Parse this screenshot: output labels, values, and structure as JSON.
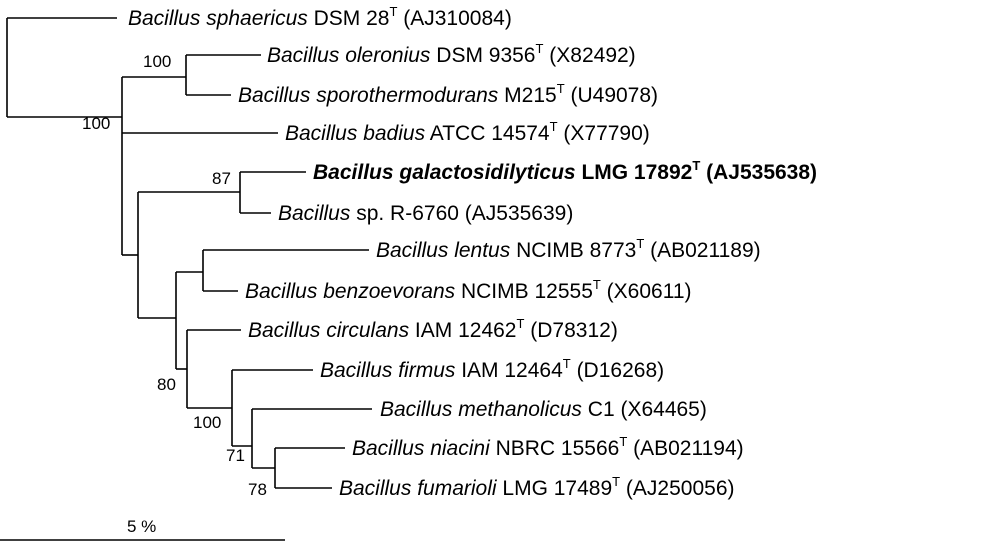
{
  "taxa": [
    {
      "id": "sphaericus",
      "genus": "Bacillus",
      "species": "sphaericus",
      "strain": "DSM 28",
      "type_strain": true,
      "accession": "(AJ310084)",
      "bold": false
    },
    {
      "id": "oleronius",
      "genus": "Bacillus",
      "species": "oleronius",
      "strain": "DSM 9356",
      "type_strain": true,
      "accession": "(X82492)",
      "bold": false
    },
    {
      "id": "sporothermodurans",
      "genus": "Bacillus",
      "species": "sporothermodurans",
      "strain": "M215",
      "type_strain": true,
      "accession": "(U49078)",
      "bold": false
    },
    {
      "id": "badius",
      "genus": "Bacillus",
      "species": "badius",
      "strain": "ATCC 14574",
      "type_strain": true,
      "accession": "(X77790)",
      "bold": false
    },
    {
      "id": "galactosidilyticus",
      "genus": "Bacillus",
      "species": "galactosidilyticus",
      "strain": "LMG 17892",
      "type_strain": true,
      "accession": "(AJ535638)",
      "bold": true
    },
    {
      "id": "r6760",
      "genus": "Bacillus",
      "species": "sp.",
      "species_italic": false,
      "strain": "R-6760",
      "type_strain": false,
      "accession": "(AJ535639)",
      "bold": false
    },
    {
      "id": "lentus",
      "genus": "Bacillus",
      "species": "lentus",
      "strain": "NCIMB 8773",
      "type_strain": true,
      "accession": "(AB021189)",
      "bold": false
    },
    {
      "id": "benzoevorans",
      "genus": "Bacillus",
      "species": "benzoevorans",
      "strain": "NCIMB 12555",
      "type_strain": true,
      "accession": "(X60611)",
      "bold": false
    },
    {
      "id": "circulans",
      "genus": "Bacillus",
      "species": "circulans",
      "strain": "IAM 12462",
      "type_strain": true,
      "accession": "(D78312)",
      "bold": false
    },
    {
      "id": "firmus",
      "genus": "Bacillus",
      "species": "firmus",
      "strain": "IAM 12464",
      "type_strain": true,
      "accession": "(D16268)",
      "bold": false
    },
    {
      "id": "methanolicus",
      "genus": "Bacillus",
      "species": "methanolicus",
      "strain": "C1",
      "type_strain": false,
      "accession": "(X64465)",
      "bold": false
    },
    {
      "id": "niacini",
      "genus": "Bacillus",
      "species": "niacini",
      "strain": "NBRC 15566",
      "type_strain": true,
      "accession": "(AB021194)",
      "bold": false
    },
    {
      "id": "fumarioli",
      "genus": "Bacillus",
      "species": "fumarioli",
      "strain": "LMG 17489",
      "type_strain": true,
      "accession": "(AJ250056)",
      "bold": false
    }
  ],
  "type_strain_mark": "T",
  "bootstrap_values": [
    {
      "node": "oleronius-sporothermodurans",
      "value": "100"
    },
    {
      "node": "ingroup",
      "value": "100"
    },
    {
      "node": "galactosidilyticus-r6760",
      "value": "87"
    },
    {
      "node": "circulans-firmus-group",
      "value": "80"
    },
    {
      "node": "firmus-group",
      "value": "100"
    },
    {
      "node": "methanolicus-group",
      "value": "71"
    },
    {
      "node": "niacini-fumarioli",
      "value": "78"
    }
  ],
  "scale_bar": {
    "label": "5 %"
  }
}
